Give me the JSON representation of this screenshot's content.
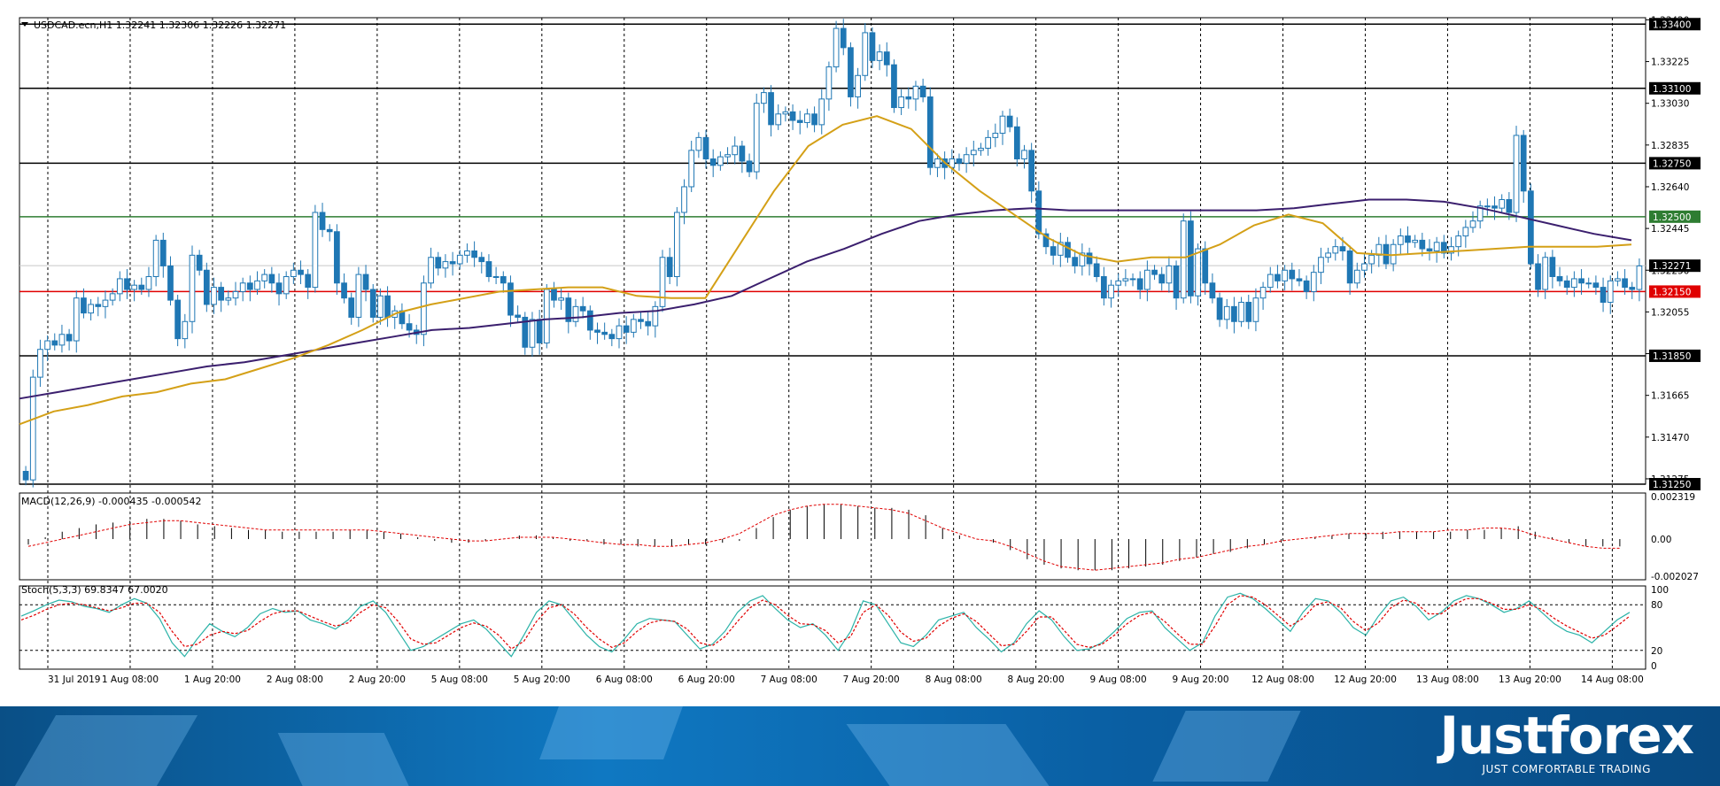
{
  "chart_data": [
    {
      "type": "candlestick",
      "title": "USDCAD.ecn,H1  1.32241 1.32306 1.32226 1.32271",
      "ylim": [
        1.3125,
        1.3343
      ],
      "y_ticks": [
        "1.33420",
        "1.33225",
        "1.33030",
        "1.32835",
        "1.32640",
        "1.32445",
        "1.32250",
        "1.32055",
        "1.31860",
        "1.31665",
        "1.31470",
        "1.31275"
      ],
      "y_tick_values": [
        1.3342,
        1.33225,
        1.3303,
        1.32835,
        1.3264,
        1.32445,
        1.3225,
        1.32055,
        1.3186,
        1.31665,
        1.3147,
        1.31275
      ],
      "x_labels": [
        "31 Jul 2019",
        "1 Aug 08:00",
        "1 Aug 20:00",
        "2 Aug 08:00",
        "2 Aug 20:00",
        "5 Aug 08:00",
        "5 Aug 20:00",
        "6 Aug 08:00",
        "6 Aug 20:00",
        "7 Aug 08:00",
        "7 Aug 20:00",
        "8 Aug 08:00",
        "8 Aug 20:00",
        "9 Aug 08:00",
        "9 Aug 20:00",
        "12 Aug 08:00",
        "12 Aug 20:00",
        "13 Aug 08:00",
        "13 Aug 20:00",
        "14 Aug 08:00"
      ],
      "levels": [
        {
          "label": "1.33400",
          "value": 1.334,
          "color": "#000000"
        },
        {
          "label": "1.33100",
          "value": 1.331,
          "color": "#000000"
        },
        {
          "label": "1.32750",
          "value": 1.3275,
          "color": "#000000"
        },
        {
          "label": "1.32500",
          "value": 1.325,
          "color": "#2e7d32"
        },
        {
          "label": "1.32150",
          "value": 1.3215,
          "color": "#e00000"
        },
        {
          "label": "1.31850",
          "value": 1.3185,
          "color": "#000000"
        },
        {
          "label": "1.31250",
          "value": 1.3125,
          "color": "#000000"
        }
      ],
      "current_price": {
        "label": "1.32271",
        "value": 1.32271
      },
      "candle_color": "#1f77b4",
      "ma_fast_color": "#d4a017",
      "ma_slow_color": "#3b1f6e",
      "closes": [
        1.3127,
        1.3175,
        1.3188,
        1.3192,
        1.319,
        1.3195,
        1.3192,
        1.3212,
        1.3205,
        1.3209,
        1.3208,
        1.3211,
        1.3214,
        1.3221,
        1.3216,
        1.3218,
        1.3216,
        1.3222,
        1.3239,
        1.3227,
        1.3211,
        1.3193,
        1.3201,
        1.3232,
        1.3225,
        1.3209,
        1.3217,
        1.3211,
        1.3212,
        1.3215,
        1.3219,
        1.3216,
        1.322,
        1.3223,
        1.3219,
        1.3214,
        1.3222,
        1.3225,
        1.3223,
        1.3217,
        1.3252,
        1.3244,
        1.3243,
        1.3219,
        1.3212,
        1.3203,
        1.3223,
        1.3216,
        1.3203,
        1.3213,
        1.3203,
        1.3206,
        1.32,
        1.3197,
        1.3195,
        1.3219,
        1.3231,
        1.3226,
        1.3229,
        1.3228,
        1.3232,
        1.3234,
        1.3231,
        1.3229,
        1.3222,
        1.3222,
        1.3219,
        1.3204,
        1.3203,
        1.3189,
        1.3202,
        1.3191,
        1.3216,
        1.3211,
        1.3212,
        1.3201,
        1.3208,
        1.3206,
        1.3197,
        1.3196,
        1.3195,
        1.3193,
        1.3199,
        1.3196,
        1.3202,
        1.3201,
        1.3199,
        1.3208,
        1.3231,
        1.3222,
        1.3252,
        1.3264,
        1.3281,
        1.3287,
        1.3277,
        1.3274,
        1.3278,
        1.3279,
        1.3283,
        1.3276,
        1.3271,
        1.3303,
        1.3308,
        1.3293,
        1.3298,
        1.3299,
        1.3295,
        1.3294,
        1.3298,
        1.3293,
        1.3305,
        1.332,
        1.3338,
        1.3329,
        1.3306,
        1.3316,
        1.3336,
        1.3323,
        1.3327,
        1.3321,
        1.3301,
        1.3306,
        1.3305,
        1.3311,
        1.3306,
        1.3273,
        1.3277,
        1.3273,
        1.3277,
        1.3275,
        1.3279,
        1.3281,
        1.3282,
        1.3287,
        1.3289,
        1.3297,
        1.3292,
        1.3277,
        1.3281,
        1.3262,
        1.3242,
        1.3236,
        1.3232,
        1.3238,
        1.3231,
        1.3227,
        1.3233,
        1.3228,
        1.3222,
        1.3212,
        1.3218,
        1.322,
        1.3221,
        1.3221,
        1.3216,
        1.3225,
        1.3223,
        1.3219,
        1.3227,
        1.3212,
        1.3248,
        1.3213,
        1.3235,
        1.3219,
        1.3212,
        1.3202,
        1.3208,
        1.3201,
        1.321,
        1.3201,
        1.3212,
        1.3217,
        1.3223,
        1.322,
        1.3225,
        1.3221,
        1.322,
        1.3215,
        1.3224,
        1.3231,
        1.3233,
        1.3236,
        1.3234,
        1.3219,
        1.3225,
        1.3228,
        1.3232,
        1.3237,
        1.3228,
        1.3237,
        1.3241,
        1.3238,
        1.3239,
        1.3235,
        1.3234,
        1.3238,
        1.3233,
        1.3236,
        1.3241,
        1.3245,
        1.3248,
        1.3255,
        1.3255,
        1.3254,
        1.3258,
        1.3252,
        1.3288,
        1.3262,
        1.3228,
        1.3216,
        1.3231,
        1.3222,
        1.322,
        1.3217,
        1.3221,
        1.3219,
        1.3219,
        1.3217,
        1.321,
        1.322,
        1.3221,
        1.3217,
        1.3216,
        1.3227
      ],
      "ma_fast": [
        1.3153,
        1.3159,
        1.3162,
        1.3166,
        1.3168,
        1.3172,
        1.3174,
        1.3179,
        1.3184,
        1.319,
        1.3197,
        1.3205,
        1.3209,
        1.3212,
        1.3215,
        1.3216,
        1.3217,
        1.3217,
        1.3213,
        1.3212,
        1.3212,
        1.3237,
        1.3262,
        1.3283,
        1.3293,
        1.3297,
        1.3291,
        1.3275,
        1.3262,
        1.3251,
        1.324,
        1.3232,
        1.3229,
        1.3231,
        1.3231,
        1.3237,
        1.3246,
        1.3251,
        1.3247,
        1.3233,
        1.3232,
        1.3233,
        1.3234,
        1.3235,
        1.3236,
        1.3236,
        1.3236,
        1.3237
      ],
      "ma_slow": [
        1.3165,
        1.3168,
        1.3171,
        1.3174,
        1.3177,
        1.318,
        1.3182,
        1.3185,
        1.3188,
        1.3191,
        1.3194,
        1.3197,
        1.3198,
        1.32,
        1.3202,
        1.3203,
        1.3205,
        1.3206,
        1.3209,
        1.3213,
        1.3221,
        1.3229,
        1.3235,
        1.3242,
        1.3248,
        1.3251,
        1.3253,
        1.3254,
        1.3253,
        1.3253,
        1.3253,
        1.3253,
        1.3253,
        1.3253,
        1.3254,
        1.3256,
        1.3258,
        1.3258,
        1.3257,
        1.3254,
        1.325,
        1.3246,
        1.3242,
        1.3239
      ]
    },
    {
      "type": "bar",
      "title": "MACD(12,26,9) -0.000435 -0.000542",
      "ylim": [
        -0.002027,
        0.002319
      ],
      "y_ticks": [
        "0.002319",
        "0.00",
        "-0.002027"
      ],
      "y_tick_values": [
        0.002319,
        0,
        -0.002027
      ],
      "histogram": [
        -0.0003,
        0.0001,
        0.0004,
        0.0006,
        0.0008,
        0.0009,
        0.001,
        0.0011,
        0.0011,
        0.001,
        0.0008,
        0.0007,
        0.0006,
        0.0005,
        0.0005,
        0.0004,
        0.0004,
        0.0004,
        0.0004,
        0.0005,
        0.0005,
        0.0004,
        0.0003,
        0.0001,
        -0.0001,
        -0.0002,
        -0.0002,
        -0.0001,
        0,
        0.0002,
        0.0002,
        0.0001,
        -0.0001,
        -0.0001,
        -0.0003,
        -0.0003,
        -0.0004,
        -0.0004,
        -0.0004,
        -0.0003,
        -0.0003,
        -0.0002,
        -0.0001,
        0.0006,
        0.0012,
        0.0016,
        0.0018,
        0.0019,
        0.0019,
        0.0018,
        0.0017,
        0.0017,
        0.0016,
        0.0013,
        0.0006,
        0.0002,
        0,
        -0.0002,
        -0.0006,
        -0.0011,
        -0.0014,
        -0.0016,
        -0.0017,
        -0.0017,
        -0.0017,
        -0.0016,
        -0.0015,
        -0.0014,
        -0.0012,
        -0.001,
        -0.0008,
        -0.0007,
        -0.0005,
        -0.0003,
        -0.0002,
        0,
        0.0001,
        0.0002,
        0.0003,
        0.0003,
        0.0004,
        0.0004,
        0.0004,
        0.0004,
        0.0004,
        0.0005,
        0.0005,
        0.0006,
        0.0007,
        0.0004,
        0.0001,
        -0.0002,
        -0.0004,
        -0.0004,
        -0.0004
      ],
      "signal": [
        -0.0004,
        -0.0002,
        0,
        0.0002,
        0.0004,
        0.0006,
        0.0008,
        0.0009,
        0.001,
        0.001,
        0.0009,
        0.0008,
        0.0007,
        0.0006,
        0.0005,
        0.0005,
        0.0005,
        0.0005,
        0.0005,
        0.0005,
        0.0005,
        0.0004,
        0.0003,
        0.0002,
        0.0001,
        0,
        -0.0001,
        -0.0001,
        0,
        0.0001,
        0.0001,
        0.0001,
        0,
        -0.0001,
        -0.0002,
        -0.0003,
        -0.0003,
        -0.0004,
        -0.0004,
        -0.0003,
        -0.0002,
        0,
        0.0003,
        0.0008,
        0.0013,
        0.0016,
        0.0018,
        0.0019,
        0.0019,
        0.0018,
        0.0017,
        0.0016,
        0.0014,
        0.001,
        0.0006,
        0.0003,
        0,
        -0.0001,
        -0.0004,
        -0.0008,
        -0.0012,
        -0.0015,
        -0.0016,
        -0.0017,
        -0.0016,
        -0.0015,
        -0.0014,
        -0.0013,
        -0.0011,
        -0.001,
        -0.0008,
        -0.0006,
        -0.0004,
        -0.0003,
        -0.0001,
        0,
        0.0001,
        0.0002,
        0.0003,
        0.0003,
        0.0003,
        0.0004,
        0.0004,
        0.0004,
        0.0005,
        0.0005,
        0.0006,
        0.0006,
        0.0005,
        0.0002,
        0,
        -0.0002,
        -0.0004,
        -0.0005,
        -0.0005
      ]
    },
    {
      "type": "line",
      "title": "Stoch(5,3,3) 69.8347 67.0020",
      "ylim": [
        0,
        100
      ],
      "y_ticks": [
        "100",
        "80",
        "20",
        "0"
      ],
      "y_tick_values": [
        100,
        80,
        20,
        0
      ],
      "main": [
        65,
        72,
        80,
        86,
        84,
        78,
        75,
        70,
        80,
        88,
        82,
        62,
        30,
        12,
        35,
        55,
        45,
        38,
        50,
        68,
        75,
        70,
        72,
        60,
        55,
        48,
        60,
        78,
        85,
        70,
        45,
        20,
        25,
        35,
        45,
        55,
        60,
        48,
        30,
        12,
        40,
        70,
        85,
        80,
        60,
        40,
        25,
        18,
        35,
        55,
        62,
        60,
        58,
        40,
        22,
        28,
        45,
        70,
        85,
        92,
        75,
        60,
        50,
        55,
        40,
        20,
        45,
        85,
        80,
        55,
        30,
        25,
        40,
        60,
        65,
        70,
        50,
        35,
        18,
        30,
        55,
        72,
        60,
        38,
        20,
        22,
        30,
        45,
        62,
        70,
        72,
        50,
        35,
        20,
        30,
        65,
        90,
        95,
        88,
        75,
        60,
        45,
        70,
        88,
        85,
        70,
        50,
        40,
        65,
        85,
        90,
        78,
        60,
        70,
        85,
        92,
        88,
        80,
        70,
        75,
        85,
        70,
        55,
        45,
        40,
        30,
        45,
        60,
        70
      ],
      "signal": [
        60,
        66,
        74,
        80,
        82,
        80,
        76,
        72,
        76,
        82,
        82,
        70,
        45,
        25,
        28,
        40,
        45,
        42,
        46,
        58,
        68,
        72,
        72,
        65,
        58,
        52,
        56,
        70,
        80,
        76,
        58,
        35,
        28,
        30,
        40,
        50,
        56,
        52,
        40,
        22,
        32,
        58,
        76,
        80,
        68,
        50,
        35,
        24,
        30,
        45,
        56,
        60,
        58,
        48,
        30,
        26,
        38,
        58,
        76,
        86,
        80,
        66,
        55,
        54,
        46,
        30,
        38,
        70,
        80,
        66,
        44,
        32,
        36,
        52,
        62,
        68,
        58,
        42,
        26,
        28,
        45,
        64,
        64,
        46,
        28,
        24,
        28,
        40,
        55,
        66,
        70,
        58,
        42,
        28,
        28,
        52,
        80,
        92,
        90,
        80,
        66,
        52,
        62,
        80,
        84,
        76,
        58,
        46,
        56,
        76,
        86,
        82,
        68,
        68,
        80,
        88,
        88,
        82,
        74,
        74,
        80,
        74,
        62,
        52,
        44,
        36,
        40,
        52,
        65
      ]
    }
  ],
  "footer": {
    "brand": "Justforex",
    "tagline": "JUST COMFORTABLE TRADING"
  }
}
